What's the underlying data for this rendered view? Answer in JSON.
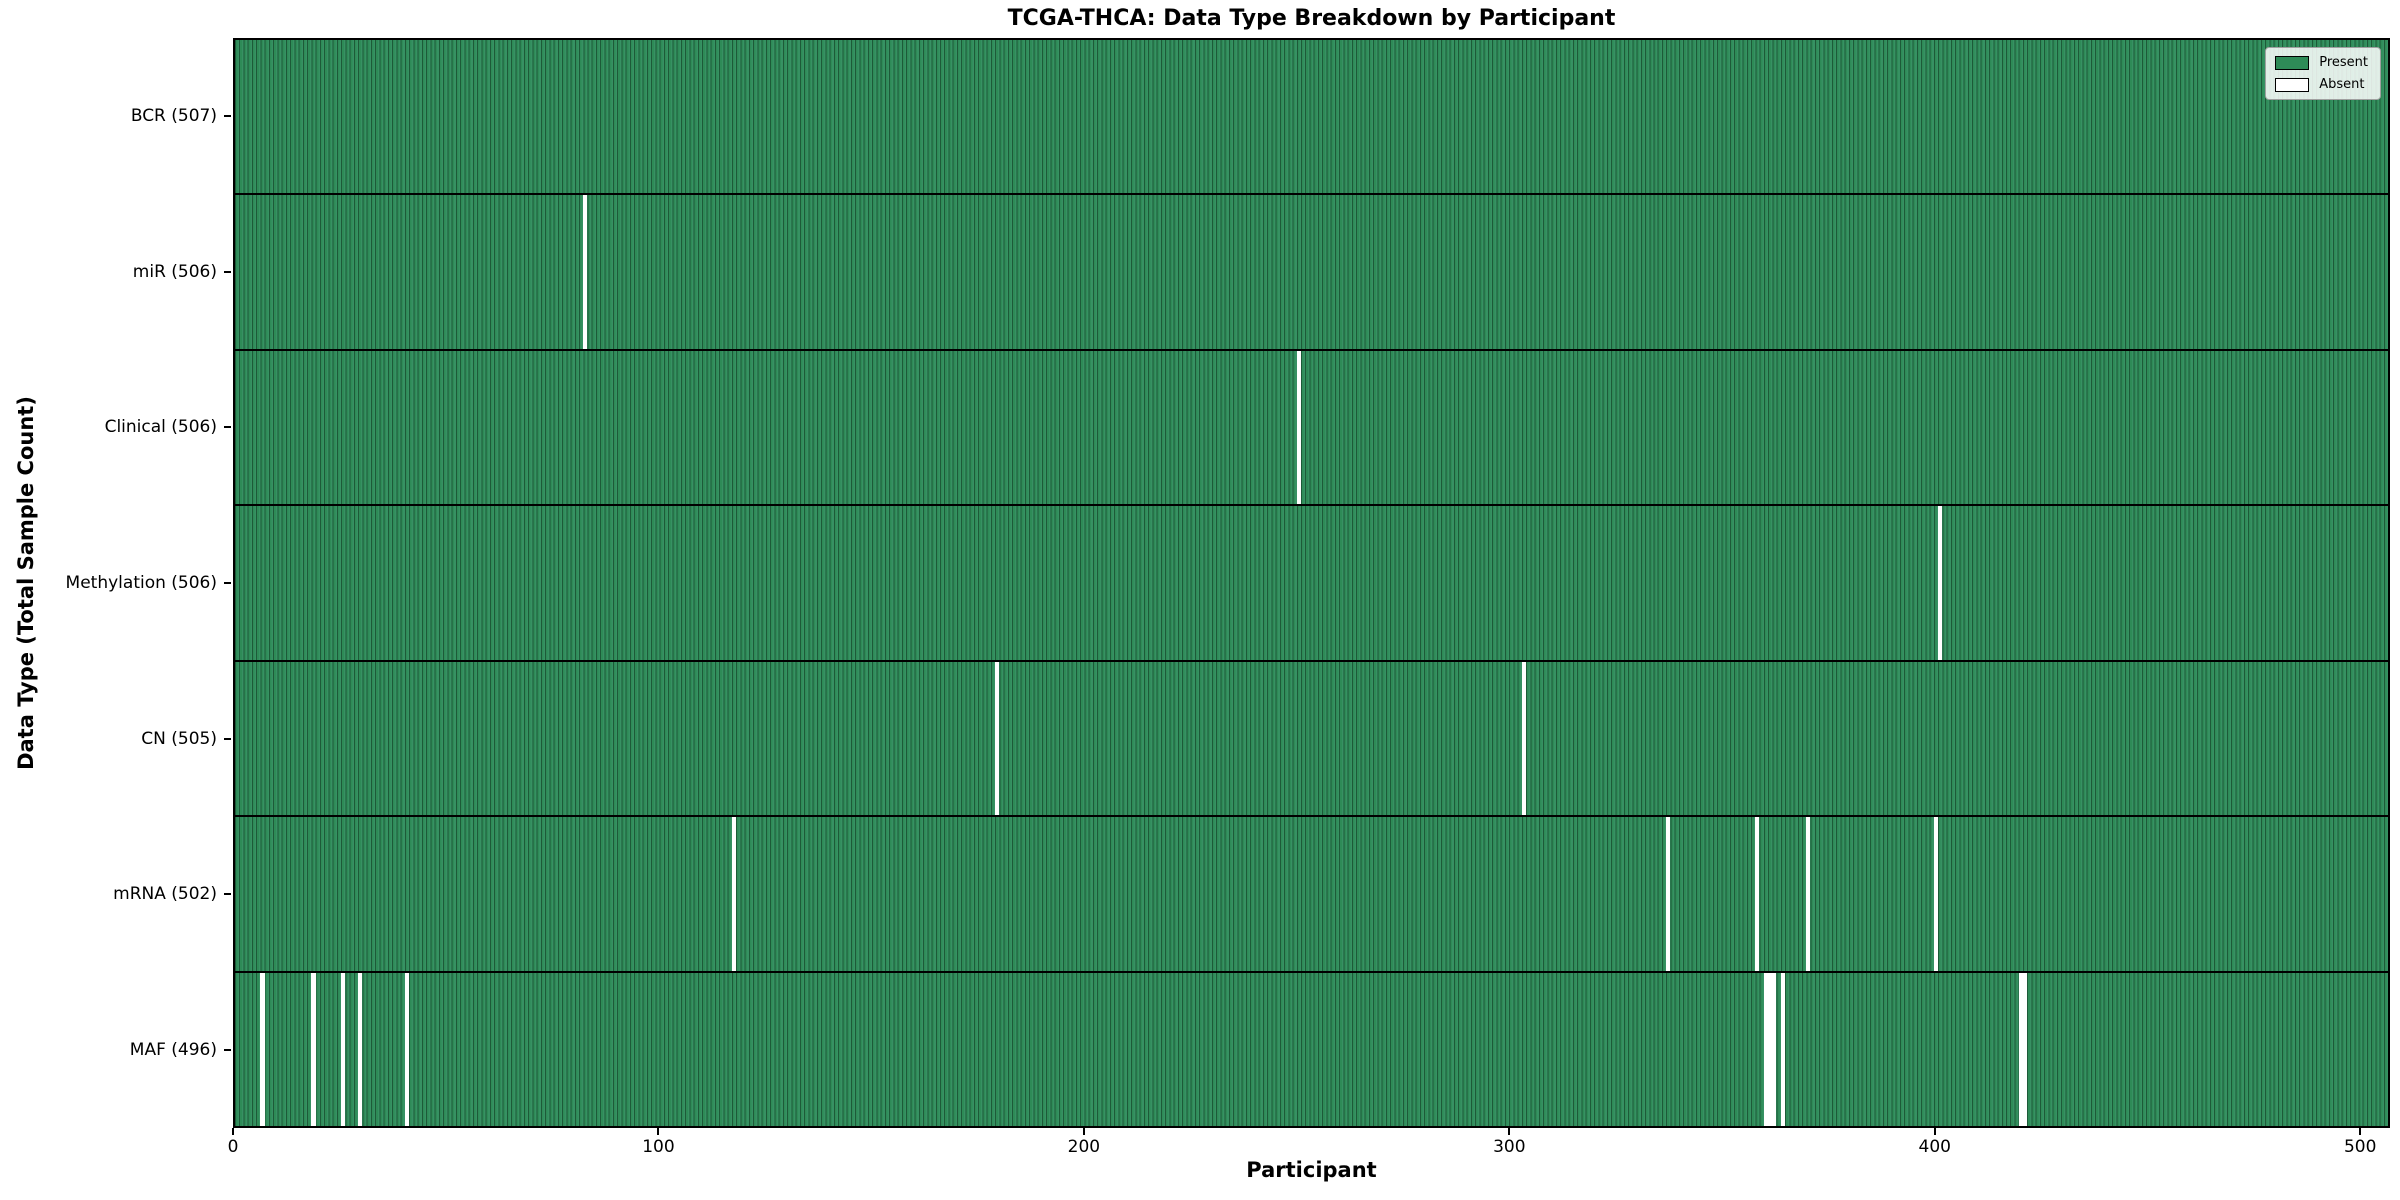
{
  "chart_data": {
    "type": "heatmap",
    "title": "TCGA-THCA: Data Type Breakdown by Participant",
    "xlabel": "Participant",
    "ylabel": "Data Type (Total Sample Count)",
    "n_participants": 507,
    "xlim": [
      0,
      507
    ],
    "x_ticks": [
      0,
      100,
      200,
      300,
      400,
      500
    ],
    "grid": false,
    "legend": {
      "position": "upper right",
      "entries": [
        {
          "label": "Present",
          "color": "#2e8b57"
        },
        {
          "label": "Absent",
          "color": "#ffffff"
        }
      ]
    },
    "rows": [
      {
        "name": "BCR",
        "total": 507,
        "tick_label": "BCR (507)",
        "absent_participants": []
      },
      {
        "name": "miR",
        "total": 506,
        "tick_label": "miR (506)",
        "absent_participants": [
          82
        ]
      },
      {
        "name": "Clinical",
        "total": 506,
        "tick_label": "Clinical (506)",
        "absent_participants": [
          250
        ]
      },
      {
        "name": "Methylation",
        "total": 506,
        "tick_label": "Methylation (506)",
        "absent_participants": [
          401
        ]
      },
      {
        "name": "CN",
        "total": 505,
        "tick_label": "CN (505)",
        "absent_participants": [
          179,
          303
        ]
      },
      {
        "name": "mRNA",
        "total": 502,
        "tick_label": "mRNA (502)",
        "absent_participants": [
          117,
          337,
          358,
          370,
          400
        ]
      },
      {
        "name": "MAF",
        "total": 496,
        "tick_label": "MAF (496)",
        "absent_participants": [
          6,
          18,
          25,
          29,
          40,
          360,
          361,
          362,
          364,
          420,
          421
        ]
      }
    ],
    "colors": {
      "present": "#2e8b57",
      "present_light": "#379163",
      "absent": "#ffffff",
      "bar_edge": "#1d5a38",
      "spine": "#000000",
      "background": "#ffffff"
    }
  }
}
